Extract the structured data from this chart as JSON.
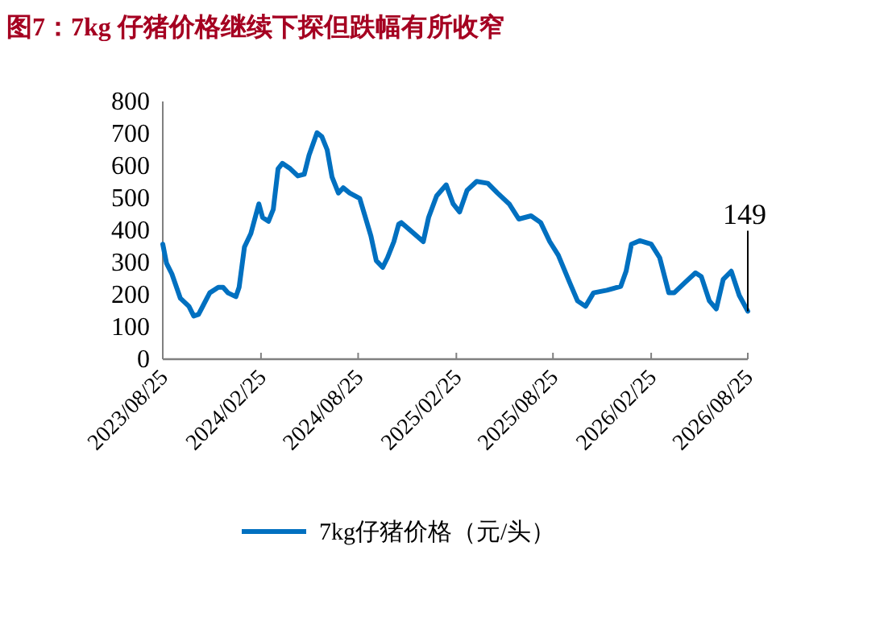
{
  "chart_data": {
    "type": "line",
    "title": "图7：7kg 仔猪价格继续下探但跌幅有所收窄",
    "x": [
      "2023-08-25",
      "2023-09-01",
      "2023-09-11",
      "2023-09-27",
      "2023-10-13",
      "2023-10-22",
      "2023-10-31",
      "2023-11-21",
      "2023-12-07",
      "2023-12-16",
      "2023-12-25",
      "2024-01-09",
      "2024-01-15",
      "2024-01-25",
      "2024-02-06",
      "2024-02-21",
      "2024-02-28",
      "2024-03-10",
      "2024-03-19",
      "2024-03-28",
      "2024-04-05",
      "2024-04-20",
      "2024-05-04",
      "2024-05-16",
      "2024-05-25",
      "2024-06-09",
      "2024-06-18",
      "2024-06-28",
      "2024-07-07",
      "2024-07-19",
      "2024-07-28",
      "2024-08-09",
      "2024-08-28",
      "2024-09-06",
      "2024-09-18",
      "2024-09-28",
      "2024-10-10",
      "2024-10-19",
      "2024-10-31",
      "2024-11-09",
      "2024-11-14",
      "2024-12-25",
      "2025-01-04",
      "2025-01-19",
      "2025-02-06",
      "2025-02-19",
      "2025-03-03",
      "2025-03-17",
      "2025-04-04",
      "2025-04-25",
      "2025-05-13",
      "2025-06-04",
      "2025-06-22",
      "2025-07-15",
      "2025-08-02",
      "2025-08-19",
      "2025-09-04",
      "2025-09-25",
      "2025-10-10",
      "2025-10-25",
      "2025-11-09",
      "2025-12-04",
      "2025-12-30",
      "2026-01-09",
      "2026-01-19",
      "2026-02-04",
      "2026-02-25",
      "2026-03-13",
      "2026-03-30",
      "2026-04-09",
      "2026-04-30",
      "2026-05-19",
      "2026-05-30",
      "2026-06-14",
      "2026-06-27",
      "2026-07-10",
      "2026-07-25",
      "2026-08-09",
      "2026-08-25"
    ],
    "series": [
      {
        "name": "7kg仔猪价格（元/头）",
        "color": "#0070c0",
        "values": [
          357,
          298,
          265,
          189,
          164,
          134,
          139,
          206,
          223,
          223,
          206,
          194,
          223,
          348,
          390,
          482,
          440,
          428,
          465,
          591,
          608,
          591,
          569,
          574,
          633,
          703,
          691,
          650,
          566,
          516,
          532,
          516,
          499,
          449,
          382,
          306,
          285,
          315,
          365,
          419,
          424,
          365,
          440,
          507,
          541,
          482,
          457,
          524,
          552,
          546,
          516,
          482,
          435,
          445,
          424,
          365,
          323,
          239,
          181,
          164,
          206,
          214,
          226,
          273,
          357,
          368,
          357,
          315,
          206,
          206,
          239,
          268,
          256,
          181,
          156,
          248,
          273,
          198,
          149
        ]
      }
    ],
    "xlim": [
      "2023-08-25",
      "2026-08-25"
    ],
    "xticks": [
      {
        "value": "2023-08-25",
        "label": "2023/08/25"
      },
      {
        "value": "2024-02-25",
        "label": "2024/02/25"
      },
      {
        "value": "2024-08-25",
        "label": "2024/08/25"
      },
      {
        "value": "2025-02-25",
        "label": "2025/02/25"
      },
      {
        "value": "2025-08-25",
        "label": "2025/08/25"
      },
      {
        "value": "2026-02-25",
        "label": "2026/02/25"
      },
      {
        "value": "2026-08-25",
        "label": "2026/08/25"
      }
    ],
    "ylim": [
      0,
      800
    ],
    "yticks": [
      0,
      100,
      200,
      300,
      400,
      500,
      600,
      700,
      800
    ],
    "annotations": [
      {
        "text": "149",
        "x": "2026-08-25",
        "y": 149
      }
    ],
    "legend": "bottom",
    "grid": false,
    "marker": "none",
    "line_style": "solid"
  }
}
